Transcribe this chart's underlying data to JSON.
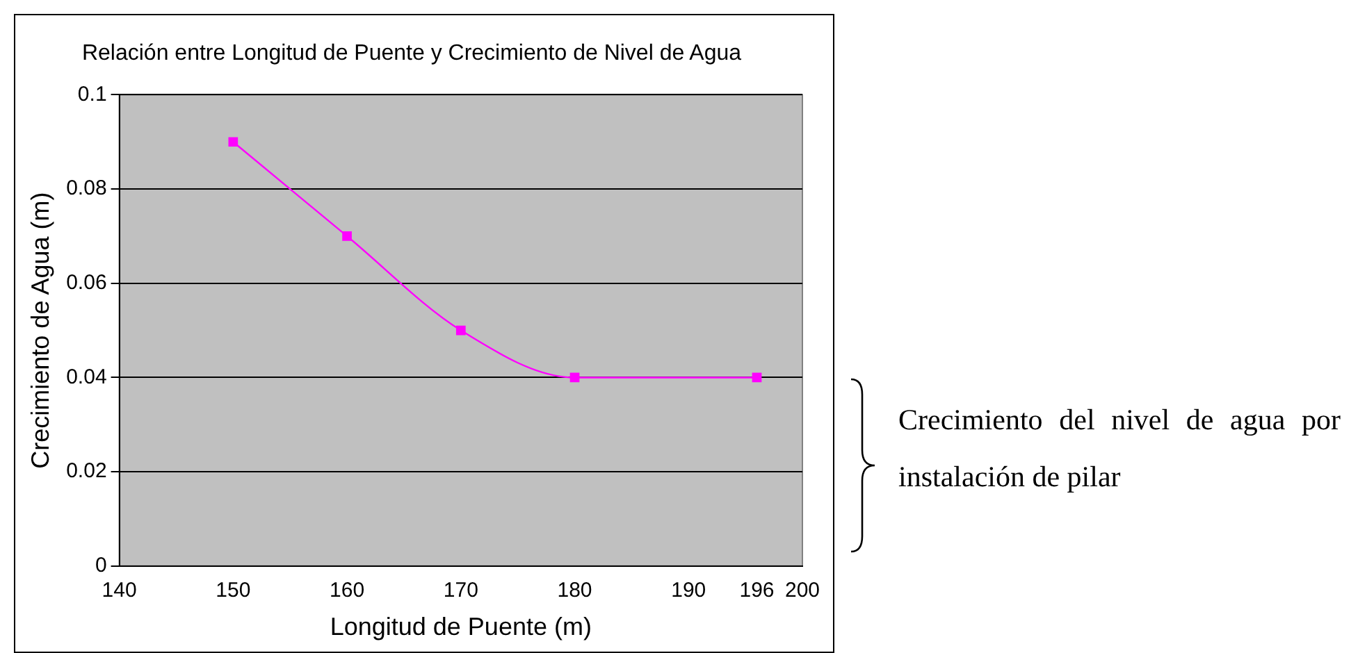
{
  "chart_data": {
    "type": "line",
    "title": "Relación entre Longitud de Puente y Crecimiento de Nivel de Agua",
    "xlabel": "Longitud de Puente (m)",
    "ylabel": "Crecimiento de Agua (m)",
    "x": [
      150,
      160,
      170,
      180,
      196
    ],
    "series": [
      {
        "color": "#ff00ff",
        "values": [
          0.09,
          0.07,
          0.05,
          0.04,
          0.04
        ]
      }
    ],
    "xlim": [
      140,
      200
    ],
    "xticks": [
      140,
      150,
      160,
      170,
      180,
      190,
      196,
      200
    ],
    "ylim": [
      0,
      0.1
    ],
    "yticks": [
      0,
      0.02,
      0.04,
      0.06,
      0.08,
      0.1
    ],
    "grid": "y",
    "legend": false,
    "marker": "square",
    "line_style": "solid",
    "annotations": [
      "Crecimiento del nivel de agua por instalación de pilar"
    ]
  }
}
